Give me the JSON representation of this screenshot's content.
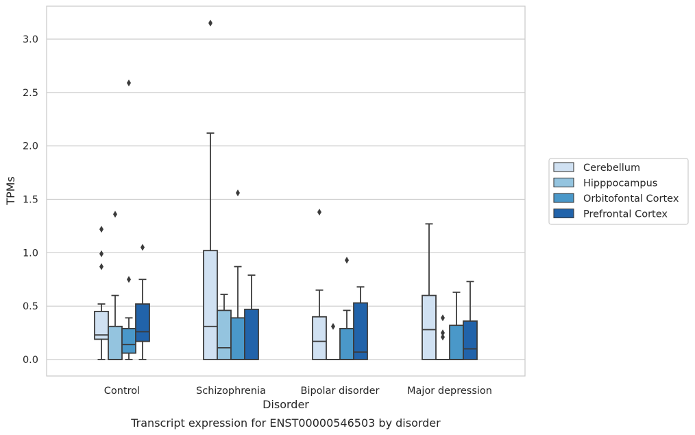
{
  "chart_data": {
    "type": "boxplot",
    "title": "",
    "caption": "Transcript expression for ENST00000546503 by disorder",
    "xlabel": "Disorder",
    "ylabel": "TPMs",
    "ylim": [
      -0.15,
      3.3
    ],
    "yticks": [
      0.0,
      0.5,
      1.0,
      1.5,
      2.0,
      2.5,
      3.0
    ],
    "ytick_labels": [
      "0.0",
      "0.5",
      "1.0",
      "1.5",
      "2.0",
      "2.5",
      "3.0"
    ],
    "grid": "horizontal",
    "legend_position": "right",
    "categories": [
      "Control",
      "Schizophrenia",
      "Bipolar disorder",
      "Major depression"
    ],
    "series": [
      {
        "name": "Cerebellum",
        "color": "#d0e1f2",
        "boxes": [
          {
            "whislo": 0.0,
            "q1": 0.19,
            "med": 0.23,
            "q3": 0.45,
            "whishi": 0.52,
            "fliers": [
              0.87,
              0.99,
              1.22
            ]
          },
          {
            "whislo": 0.0,
            "q1": 0.0,
            "med": 0.31,
            "q3": 1.02,
            "whishi": 2.12,
            "fliers": [
              3.15
            ]
          },
          {
            "whislo": 0.0,
            "q1": 0.0,
            "med": 0.17,
            "q3": 0.4,
            "whishi": 0.65,
            "fliers": [
              1.38
            ]
          },
          {
            "whislo": 0.0,
            "q1": 0.0,
            "med": 0.28,
            "q3": 0.6,
            "whishi": 1.27,
            "fliers": []
          }
        ]
      },
      {
        "name": "Hipppocampus",
        "color": "#94c4df",
        "boxes": [
          {
            "whislo": 0.0,
            "q1": 0.0,
            "med": 0.0,
            "q3": 0.31,
            "whishi": 0.6,
            "fliers": [
              1.36
            ]
          },
          {
            "whislo": 0.0,
            "q1": 0.0,
            "med": 0.11,
            "q3": 0.46,
            "whishi": 0.61,
            "fliers": []
          },
          {
            "whislo": 0.0,
            "q1": 0.0,
            "med": 0.0,
            "q3": 0.0,
            "whishi": 0.0,
            "fliers": [
              0.31
            ]
          },
          {
            "whislo": 0.0,
            "q1": 0.0,
            "med": 0.0,
            "q3": 0.0,
            "whishi": 0.0,
            "fliers": [
              0.21,
              0.25,
              0.39
            ]
          }
        ]
      },
      {
        "name": "Orbitofontal Cortex",
        "color": "#4a98c9",
        "boxes": [
          {
            "whislo": 0.0,
            "q1": 0.06,
            "med": 0.14,
            "q3": 0.29,
            "whishi": 0.39,
            "fliers": [
              0.75,
              2.59
            ]
          },
          {
            "whislo": 0.0,
            "q1": 0.0,
            "med": 0.0,
            "q3": 0.39,
            "whishi": 0.87,
            "fliers": [
              1.56
            ]
          },
          {
            "whislo": 0.0,
            "q1": 0.0,
            "med": 0.0,
            "q3": 0.29,
            "whishi": 0.46,
            "fliers": [
              0.93
            ]
          },
          {
            "whislo": 0.0,
            "q1": 0.0,
            "med": 0.0,
            "q3": 0.32,
            "whishi": 0.63,
            "fliers": []
          }
        ]
      },
      {
        "name": "Prefrontal Cortex",
        "color": "#2163aa",
        "boxes": [
          {
            "whislo": 0.0,
            "q1": 0.17,
            "med": 0.26,
            "q3": 0.52,
            "whishi": 0.75,
            "fliers": [
              1.05
            ]
          },
          {
            "whislo": 0.0,
            "q1": 0.0,
            "med": 0.0,
            "q3": 0.47,
            "whishi": 0.79,
            "fliers": []
          },
          {
            "whislo": 0.0,
            "q1": 0.0,
            "med": 0.07,
            "q3": 0.53,
            "whishi": 0.68,
            "fliers": []
          },
          {
            "whislo": 0.0,
            "q1": 0.0,
            "med": 0.1,
            "q3": 0.36,
            "whishi": 0.73,
            "fliers": []
          }
        ]
      }
    ]
  }
}
